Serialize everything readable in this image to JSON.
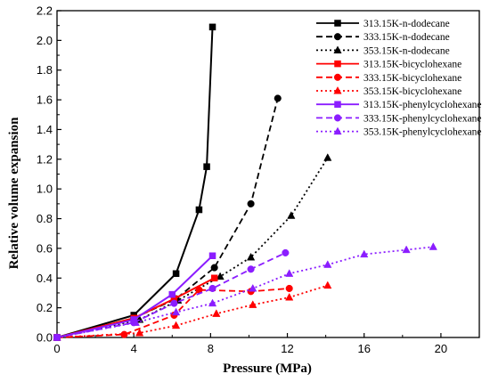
{
  "chart_data": {
    "type": "line",
    "title": "",
    "xlabel": "Pressure  (MPa)",
    "ylabel": "Relative volume expansion",
    "xlim": [
      0,
      22
    ],
    "ylim": [
      0,
      2.2
    ],
    "x_ticks": [
      0,
      4,
      8,
      12,
      16,
      20
    ],
    "y_ticks": [
      0.0,
      0.2,
      0.4,
      0.6,
      0.8,
      1.0,
      1.2,
      1.4,
      1.6,
      1.8,
      2.0,
      2.2
    ],
    "x_tick_labels": [
      "0",
      "4",
      "8",
      "12",
      "16",
      "20"
    ],
    "y_tick_labels": [
      "0.0",
      "0.2",
      "0.4",
      "0.6",
      "0.8",
      "1.0",
      "1.2",
      "1.4",
      "1.6",
      "1.8",
      "2.0",
      "2.2"
    ],
    "grid": false,
    "legend_position": "top-right",
    "series": [
      {
        "name": "313.15K-n-dodecane",
        "color": "#000000",
        "dash": "solid",
        "marker": "square",
        "x": [
          0,
          4.0,
          6.2,
          7.4,
          7.8,
          8.1
        ],
        "y": [
          0,
          0.15,
          0.43,
          0.86,
          1.15,
          2.09
        ]
      },
      {
        "name": "333.15K-n-dodecane",
        "color": "#000000",
        "dash": "dash",
        "marker": "circle",
        "x": [
          0,
          4.0,
          6.2,
          8.2,
          10.1,
          11.5
        ],
        "y": [
          0,
          0.13,
          0.26,
          0.47,
          0.9,
          1.61
        ]
      },
      {
        "name": "353.15K-n-dodecane",
        "color": "#000000",
        "dash": "dot",
        "marker": "triangle",
        "x": [
          0,
          4.3,
          6.3,
          8.5,
          10.1,
          12.2,
          14.1
        ],
        "y": [
          0,
          0.12,
          0.25,
          0.41,
          0.54,
          0.82,
          1.21
        ]
      },
      {
        "name": "313.15K-bicyclohexane",
        "color": "#ff0000",
        "dash": "solid",
        "marker": "square",
        "x": [
          0,
          4.0,
          6.1,
          8.2
        ],
        "y": [
          0,
          0.13,
          0.26,
          0.4
        ]
      },
      {
        "name": "333.15K-bicyclohexane",
        "color": "#ff0000",
        "dash": "dash",
        "marker": "circle",
        "x": [
          0,
          3.5,
          6.1,
          7.4,
          10.1,
          12.1
        ],
        "y": [
          0,
          0.02,
          0.15,
          0.32,
          0.31,
          0.33
        ]
      },
      {
        "name": "353.15K-bicyclohexane",
        "color": "#ff0000",
        "dash": "dot",
        "marker": "triangle",
        "x": [
          0,
          4.3,
          6.2,
          8.3,
          10.2,
          12.1,
          14.1
        ],
        "y": [
          0,
          0.03,
          0.08,
          0.16,
          0.22,
          0.27,
          0.35
        ]
      },
      {
        "name": "313.15K-phenylcyclohexane",
        "color": "#8b1dff",
        "dash": "solid",
        "marker": "square",
        "x": [
          0,
          4.0,
          6.0,
          8.1
        ],
        "y": [
          0,
          0.12,
          0.29,
          0.55
        ]
      },
      {
        "name": "333.15K-phenylcyclohexane",
        "color": "#8b1dff",
        "dash": "dash",
        "marker": "circle",
        "x": [
          0,
          4.0,
          6.1,
          8.1,
          10.1,
          11.9
        ],
        "y": [
          0,
          0.1,
          0.23,
          0.33,
          0.46,
          0.57
        ]
      },
      {
        "name": "353.15K-phenylcyclohexane",
        "color": "#8b1dff",
        "dash": "dot",
        "marker": "triangle",
        "x": [
          0,
          4.1,
          6.2,
          8.1,
          10.2,
          12.1,
          14.1,
          16.0,
          18.2,
          19.6
        ],
        "y": [
          0,
          0.1,
          0.17,
          0.23,
          0.33,
          0.43,
          0.49,
          0.56,
          0.59,
          0.61
        ]
      }
    ]
  }
}
